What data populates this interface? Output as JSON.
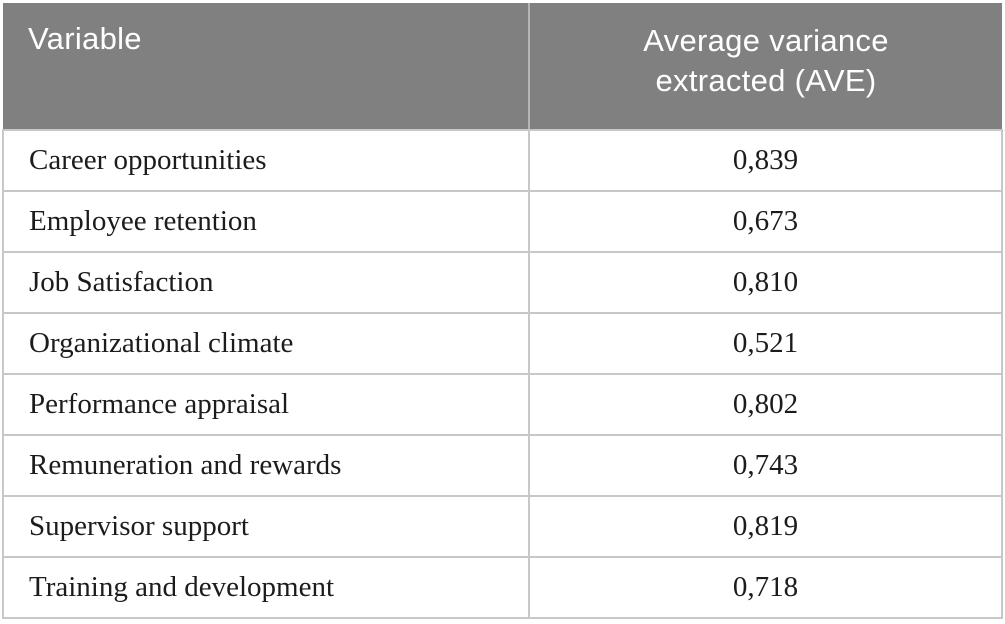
{
  "table": {
    "columns": [
      {
        "label": "Variable"
      },
      {
        "label": "Average variance extracted (AVE)"
      }
    ],
    "rows": [
      {
        "variable": "Career opportunities",
        "ave": "0,839"
      },
      {
        "variable": "Employee retention",
        "ave": "0,673"
      },
      {
        "variable": "Job Satisfaction",
        "ave": "0,810"
      },
      {
        "variable": "Organizational climate",
        "ave": "0,521"
      },
      {
        "variable": "Performance appraisal",
        "ave": "0,802"
      },
      {
        "variable": "Remuneration and rewards",
        "ave": "0,743"
      },
      {
        "variable": "Supervisor support",
        "ave": "0,819"
      },
      {
        "variable": "Training and development",
        "ave": "0,718"
      }
    ],
    "decimal_separator": ",",
    "colors": {
      "header_background": "#808080",
      "header_text": "#ffffff",
      "grid_border": "#c8c8c8",
      "body_text": "#1c1c1c",
      "page_background": "#ffffff"
    }
  }
}
